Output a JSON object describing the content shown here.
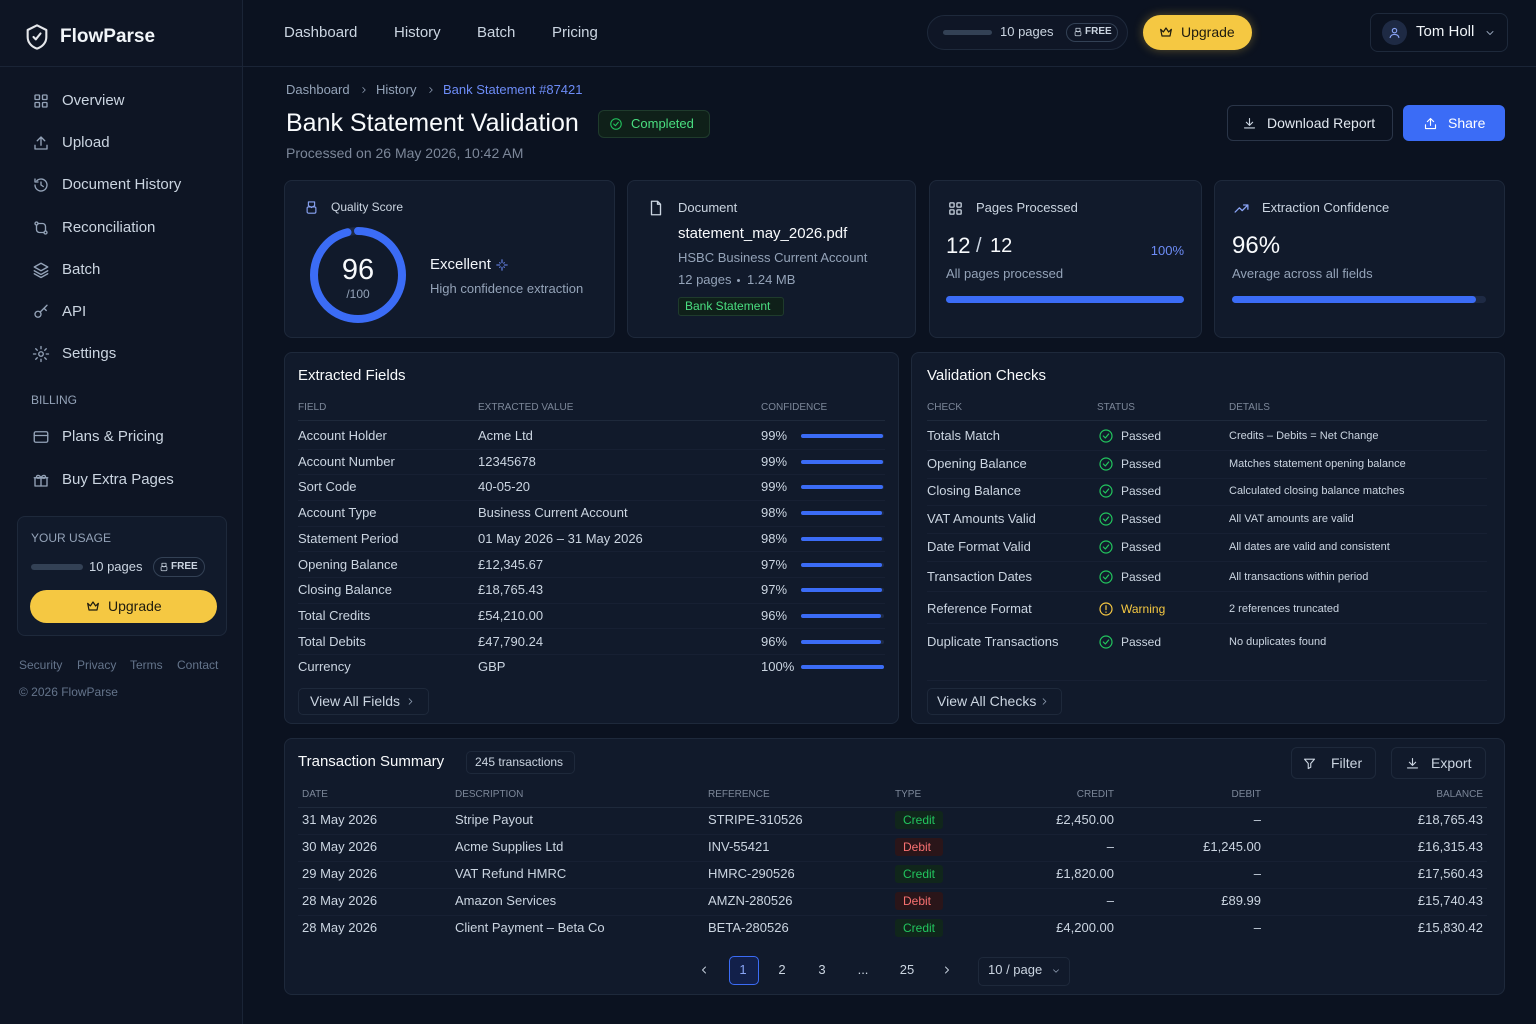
{
  "brand": "FlowParse",
  "nav": [
    "Overview",
    "Upload",
    "Document History",
    "Reconciliation",
    "Batch",
    "API",
    "Settings"
  ],
  "billing": {
    "heading": "BILLING",
    "items": [
      "Plans & Pricing",
      "Buy Extra Pages"
    ]
  },
  "usage": {
    "heading": "YOUR USAGE",
    "pages": "10 pages",
    "plan": "FREE",
    "button": "Upgrade"
  },
  "footer_links": [
    "Security",
    "Privacy",
    "Terms",
    "Contact"
  ],
  "copyright": "© 2026 FlowParse",
  "topnav": [
    "Dashboard",
    "History",
    "Batch",
    "Pricing"
  ],
  "top_usage": {
    "pages": "10 pages",
    "plan": "FREE"
  },
  "upgrade": "Upgrade",
  "user": "Tom Holl",
  "breadcrumb": [
    "Dashboard",
    "History",
    "Bank Statement #87421"
  ],
  "header": {
    "title": "Bank Statement Validation",
    "status": "Completed",
    "processed": "Processed on 26 May 2026, 10:42 AM",
    "download": "Download Report",
    "share": "Share"
  },
  "quality": {
    "label": "Quality Score",
    "score": 96,
    "max": "/100",
    "rating": "Excellent",
    "note": "High confidence extraction"
  },
  "document": {
    "label": "Document",
    "filename": "statement_may_2026.pdf",
    "account": "HSBC Business Current Account",
    "pages": "12 pages",
    "size": "1.24 MB",
    "tag": "Bank Statement"
  },
  "pages_processed": {
    "label": "Pages Processed",
    "done": "12",
    "total": "12",
    "percent": "100%",
    "note": "All pages processed"
  },
  "confidence": {
    "label": "Extraction Confidence",
    "value": "96%",
    "note": "Average across all fields"
  },
  "fields": {
    "title": "Extracted Fields",
    "columns": [
      "FIELD",
      "EXTRACTED VALUE",
      "CONFIDENCE"
    ],
    "rows": [
      [
        "Account Holder",
        "Acme Ltd",
        "99%"
      ],
      [
        "Account Number",
        "12345678",
        "99%"
      ],
      [
        "Sort Code",
        "40-05-20",
        "99%"
      ],
      [
        "Account Type",
        "Business Current Account",
        "98%"
      ],
      [
        "Statement Period",
        "01 May 2026 – 31 May 2026",
        "98%"
      ],
      [
        "Opening Balance",
        "£12,345.67",
        "97%"
      ],
      [
        "Closing Balance",
        "£18,765.43",
        "97%"
      ],
      [
        "Total Credits",
        "£54,210.00",
        "96%"
      ],
      [
        "Total Debits",
        "£47,790.24",
        "96%"
      ],
      [
        "Currency",
        "GBP",
        "100%"
      ]
    ],
    "link": "View All Fields"
  },
  "checks": {
    "title": "Validation Checks",
    "columns": [
      "CHECK",
      "STATUS",
      "DETAILS"
    ],
    "rows": [
      [
        "Totals Match",
        "Passed",
        "Credits – Debits = Net Change"
      ],
      [
        "Opening Balance",
        "Passed",
        "Matches statement opening balance"
      ],
      [
        "Closing Balance",
        "Passed",
        "Calculated closing balance matches"
      ],
      [
        "VAT Amounts Valid",
        "Passed",
        "All VAT amounts are valid"
      ],
      [
        "Date Format Valid",
        "Passed",
        "All dates are valid and consistent"
      ],
      [
        "Transaction Dates",
        "Passed",
        "All transactions within period"
      ],
      [
        "Reference Format",
        "Warning",
        "2 references truncated"
      ],
      [
        "Duplicate Transactions",
        "Passed",
        "No duplicates found"
      ]
    ],
    "link": "View All Checks"
  },
  "transactions": {
    "title": "Transaction Summary",
    "count": "245 transactions",
    "filter": "Filter",
    "export": "Export",
    "columns": [
      "DATE",
      "DESCRIPTION",
      "REFERENCE",
      "TYPE",
      "CREDIT",
      "DEBIT",
      "BALANCE"
    ],
    "rows": [
      [
        "31 May 2026",
        "Stripe Payout",
        "STRIPE-310526",
        "Credit",
        "£2,450.00",
        "–",
        "£18,765.43"
      ],
      [
        "30 May 2026",
        "Acme Supplies Ltd",
        "INV-55421",
        "Debit",
        "–",
        "£1,245.00",
        "£16,315.43"
      ],
      [
        "29 May 2026",
        "VAT Refund HMRC",
        "HMRC-290526",
        "Credit",
        "£1,820.00",
        "–",
        "£17,560.43"
      ],
      [
        "28 May 2026",
        "Amazon Services",
        "AMZN-280526",
        "Debit",
        "–",
        "£89.99",
        "£15,740.43"
      ],
      [
        "28 May 2026",
        "Client Payment – Beta Co",
        "BETA-280526",
        "Credit",
        "£4,200.00",
        "–",
        "£15,830.42"
      ]
    ],
    "pages": [
      "1",
      "2",
      "3",
      "...",
      "25"
    ],
    "per_page": "10 / page"
  }
}
